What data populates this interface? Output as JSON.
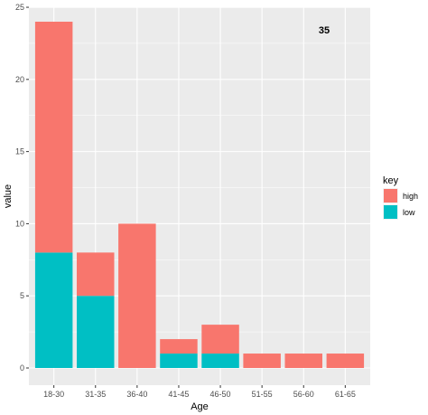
{
  "chart_data": {
    "type": "bar",
    "stacked": true,
    "categories": [
      "18-30",
      "31-35",
      "36-40",
      "41-45",
      "46-50",
      "51-55",
      "56-60",
      "61-65"
    ],
    "series": [
      {
        "name": "high",
        "values": [
          16,
          3,
          10,
          1,
          2,
          1,
          1,
          1
        ],
        "color": "#F8766D"
      },
      {
        "name": "low",
        "values": [
          8,
          5,
          0,
          1,
          1,
          0,
          0,
          0
        ],
        "color": "#00BFC4"
      }
    ],
    "xlabel": "Age",
    "ylabel": "value",
    "ylim": [
      0,
      25
    ],
    "yticks": [
      0,
      5,
      10,
      15,
      20,
      25
    ],
    "grid": true,
    "panel_background": "#EBEBEB",
    "legend": {
      "title": "key",
      "placement": "right"
    },
    "annotation": "35"
  }
}
